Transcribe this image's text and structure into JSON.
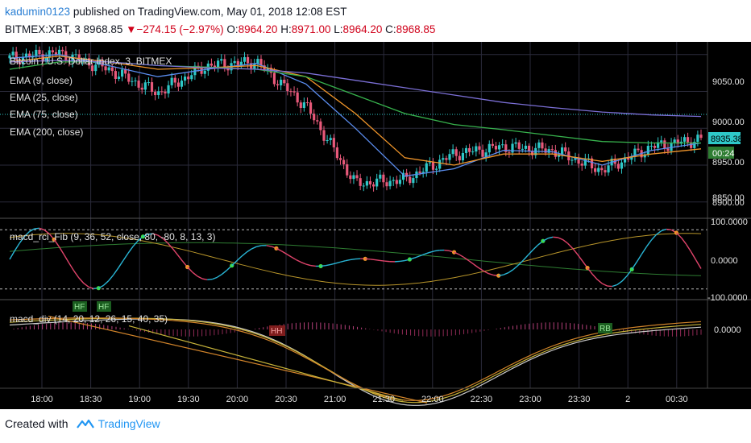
{
  "header": {
    "user": "kadumin0123",
    "published": "published on TradingView.com, May 01, 2018 12:08 EST",
    "symbol": "BITMEX:XBT, 3",
    "last": "8968.85",
    "down_arrow": "▼",
    "change": "−274.15 (−2.97%)",
    "o_label": "O:",
    "o_val": "8964.20",
    "h_label": "H:",
    "h_val": "8971.00",
    "l_label": "L:",
    "l_val": "8964.20",
    "c_label": "C:",
    "c_val": "8968.85"
  },
  "footer": {
    "created_with": "Created with",
    "brand": "TradingView"
  },
  "colors": {
    "up": "#2ec8c8",
    "down": "#e8597a",
    "ema9": "#5b8def",
    "ema25": "#f0952a",
    "ema75": "#37b24d",
    "ema200": "#7b6fd6",
    "grid": "#2a2a3a",
    "axis_text": "#e0e0e0"
  },
  "price_pane": {
    "legend": [
      "Bitcoin / U.S. Dollar Index, 3, BITMEX",
      "EMA (9, close)",
      "EMA (25, close)",
      "EMA (75, close)",
      "EMA (200, close)"
    ],
    "price_ticks": [
      "9050.00",
      "9000.00",
      "8950.00",
      "8900.00",
      "8850.00"
    ],
    "last_price_label": "8935.38",
    "countdown_label": "00:24"
  },
  "rci_pane": {
    "legend": "macd_rci_Fib (9, 36, 52, close, 80, -80, 8, 13, 3)",
    "ticks": [
      "100.0000",
      "0.0000",
      "-100.0000"
    ]
  },
  "div_pane": {
    "legend": "macd_div (14, 20, 12, 26, 15, 40, 35)",
    "ticks": [
      "0.0000"
    ],
    "labels": [
      "HF",
      "HF",
      "HH",
      "RB"
    ]
  },
  "time_axis": [
    "18:00",
    "18:30",
    "19:00",
    "19:30",
    "20:00",
    "20:30",
    "21:00",
    "21:30",
    "22:00",
    "22:30",
    "23:00",
    "23:30",
    "2",
    "00:30"
  ],
  "chart_data": {
    "type": "line",
    "x": [
      "18:00",
      "18:30",
      "19:00",
      "19:30",
      "20:00",
      "20:30",
      "21:00",
      "21:30",
      "22:00",
      "22:30",
      "23:00",
      "23:30",
      "00:00",
      "00:30",
      "00:48"
    ],
    "series": [
      {
        "name": "EMA (9, close)",
        "values": [
          9045,
          9050,
          9035,
          9020,
          9030,
          9038,
          9010,
          8950,
          8885,
          8895,
          8920,
          8918,
          8900,
          8920,
          8930
        ]
      },
      {
        "name": "EMA (25, close)",
        "values": [
          9040,
          9048,
          9040,
          9030,
          9032,
          9035,
          9020,
          8970,
          8910,
          8900,
          8915,
          8915,
          8905,
          8915,
          8922
        ]
      },
      {
        "name": "EMA (75, close)",
        "values": [
          9030,
          9040,
          9040,
          9035,
          9033,
          9030,
          9020,
          8995,
          8970,
          8955,
          8948,
          8940,
          8932,
          8930,
          8930
        ]
      },
      {
        "name": "EMA (200, close)",
        "values": [
          9040,
          9042,
          9040,
          9035,
          9032,
          9030,
          9025,
          9015,
          9005,
          8995,
          8985,
          8978,
          8972,
          8968,
          8966
        ]
      }
    ],
    "close_values": [
      9045,
      9052,
      9030,
      8998,
      9035,
      9040,
      8980,
      8875,
      8880,
      8915,
      8925,
      8920,
      8893,
      8925,
      8935
    ],
    "ylim": [
      8830,
      9065
    ],
    "last_price": 8935.38
  }
}
